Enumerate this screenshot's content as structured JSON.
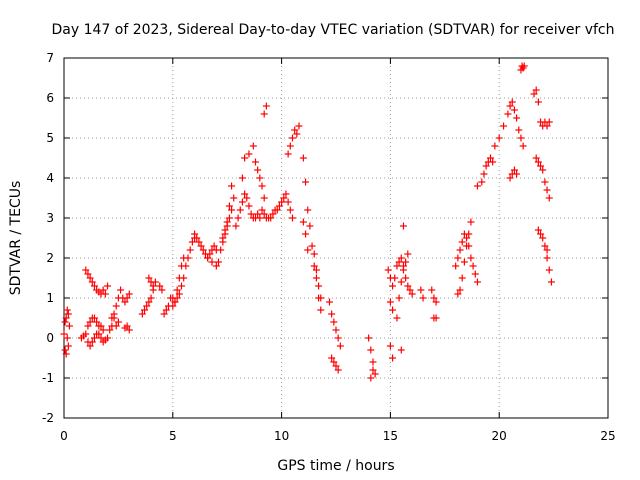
{
  "chart_data": {
    "type": "scatter",
    "title": "Day 147 of 2023, Sidereal Day-to-day VTEC variation (SDTVAR) for receiver vfch",
    "xlabel": "GPS time / hours",
    "ylabel": "SDTVAR / TECUs",
    "xlim": [
      0,
      25
    ],
    "ylim": [
      -2,
      7
    ],
    "xticks": [
      0,
      5,
      10,
      15,
      20,
      25
    ],
    "yticks": [
      -2,
      -1,
      0,
      1,
      2,
      3,
      4,
      5,
      6,
      7
    ],
    "grid": true,
    "marker": "+",
    "color": "#ff0000",
    "series": [
      {
        "name": "SDTVAR",
        "x": [
          0.0,
          0.05,
          0.1,
          0.15,
          0.2,
          0.25,
          0.1,
          0.2,
          0.15,
          0.05,
          0.8,
          0.9,
          1.0,
          1.1,
          1.2,
          1.3,
          1.4,
          1.5,
          1.6,
          1.7,
          1.8,
          1.9,
          2.0,
          2.1,
          2.2,
          2.3,
          2.4,
          2.5,
          1.1,
          1.2,
          1.3,
          1.4,
          1.5,
          1.6,
          1.7,
          1.8,
          1.0,
          1.1,
          1.2,
          1.3,
          1.4,
          1.5,
          1.6,
          1.7,
          1.8,
          1.9,
          2.0,
          2.2,
          2.3,
          2.4,
          2.5,
          2.6,
          2.7,
          2.8,
          2.9,
          3.0,
          2.9,
          3.0,
          2.8,
          3.6,
          3.7,
          3.8,
          3.9,
          4.0,
          4.1,
          4.2,
          3.9,
          4.0,
          4.1,
          4.4,
          4.5,
          4.6,
          4.7,
          4.8,
          4.9,
          5.0,
          5.1,
          5.2,
          5.3,
          5.4,
          5.5,
          5.6,
          5.7,
          5.8,
          5.9,
          6.0,
          5.0,
          5.1,
          5.2,
          5.3,
          5.4,
          5.5,
          6.0,
          6.1,
          6.2,
          6.3,
          6.4,
          6.5,
          6.6,
          6.7,
          6.8,
          6.9,
          7.0,
          6.6,
          6.8,
          7.0,
          7.1,
          7.2,
          7.3,
          7.4,
          7.5,
          7.6,
          7.7,
          7.8,
          7.3,
          7.4,
          7.5,
          7.6,
          7.7,
          7.9,
          8.0,
          8.1,
          8.2,
          8.3,
          8.4,
          8.5,
          8.6,
          8.7,
          8.8,
          8.9,
          9.0,
          9.1,
          9.2,
          9.3,
          9.4,
          8.2,
          8.3,
          8.5,
          8.7,
          8.8,
          8.9,
          9.0,
          9.1,
          9.2,
          9.5,
          9.6,
          9.7,
          9.8,
          9.9,
          10.0,
          10.1,
          10.2,
          10.3,
          10.4,
          10.5,
          10.3,
          10.4,
          10.5,
          10.6,
          10.7,
          10.8,
          9.2,
          9.3,
          11.0,
          11.1,
          11.2,
          11.3,
          11.4,
          11.5,
          11.6,
          11.7,
          11.8,
          11.0,
          11.1,
          11.2,
          11.5,
          11.6,
          11.7,
          11.8,
          12.2,
          12.3,
          12.4,
          12.5,
          12.6,
          12.7,
          12.3,
          12.4,
          12.5,
          12.6,
          14.0,
          14.1,
          14.2,
          14.3,
          14.1,
          14.2,
          14.9,
          15.0,
          15.1,
          15.2,
          15.3,
          15.4,
          15.5,
          15.6,
          15.7,
          15.8,
          15.9,
          16.0,
          15.0,
          15.1,
          15.3,
          15.4,
          15.5,
          15.6,
          15.7,
          15.8,
          15.0,
          15.1,
          15.5,
          15.6,
          16.4,
          16.5,
          16.9,
          17.0,
          17.1,
          17.1,
          17.0,
          18.1,
          18.2,
          18.3,
          18.4,
          18.5,
          18.6,
          18.7,
          18.0,
          18.1,
          18.2,
          18.3,
          18.4,
          18.5,
          18.6,
          18.7,
          18.8,
          18.9,
          19.0,
          19.0,
          19.2,
          19.3,
          19.4,
          19.5,
          19.6,
          19.7,
          19.8,
          20.0,
          20.2,
          20.4,
          20.5,
          20.6,
          20.7,
          20.8,
          20.9,
          21.0,
          21.1,
          20.5,
          20.6,
          20.7,
          20.8,
          21.0,
          21.05,
          21.1,
          21.15,
          21.6,
          21.7,
          21.8,
          21.9,
          22.0,
          22.1,
          22.2,
          22.3,
          21.7,
          21.8,
          21.9,
          22.0,
          22.1,
          22.2,
          22.3,
          21.8,
          21.9,
          22.0,
          22.1,
          22.2,
          22.2,
          22.3,
          22.4
        ],
        "y": [
          0.1,
          -0.3,
          0.5,
          0.7,
          -0.2,
          0.3,
          -0.4,
          0.6,
          0.0,
          0.4,
          0.0,
          0.05,
          0.1,
          -0.1,
          -0.2,
          -0.1,
          0.0,
          0.1,
          0.1,
          0.0,
          -0.1,
          -0.05,
          0.0,
          0.2,
          0.3,
          0.5,
          0.3,
          0.4,
          0.3,
          0.4,
          0.5,
          0.5,
          0.4,
          0.3,
          0.3,
          0.2,
          1.7,
          1.6,
          1.5,
          1.4,
          1.3,
          1.2,
          1.15,
          1.1,
          1.2,
          1.1,
          1.3,
          0.5,
          0.6,
          0.8,
          1.0,
          1.2,
          1.0,
          0.9,
          1.0,
          1.1,
          0.3,
          0.2,
          0.25,
          0.6,
          0.7,
          0.8,
          0.9,
          1.0,
          1.2,
          1.4,
          1.5,
          1.4,
          1.3,
          1.3,
          1.2,
          0.6,
          0.7,
          0.8,
          1.0,
          1.0,
          0.9,
          1.0,
          1.1,
          1.3,
          1.5,
          1.8,
          2.0,
          2.2,
          2.4,
          2.5,
          0.8,
          0.9,
          1.2,
          1.5,
          1.8,
          2.0,
          2.6,
          2.5,
          2.4,
          2.3,
          2.2,
          2.1,
          2.0,
          2.1,
          2.2,
          2.3,
          2.2,
          2.0,
          1.9,
          1.8,
          1.9,
          2.2,
          2.4,
          2.6,
          2.8,
          3.0,
          3.2,
          3.5,
          2.5,
          2.7,
          2.9,
          3.3,
          3.8,
          2.8,
          3.0,
          3.2,
          3.4,
          3.6,
          3.5,
          3.3,
          3.1,
          3.0,
          3.0,
          3.1,
          3.0,
          3.2,
          3.1,
          3.0,
          3.0,
          4.0,
          4.5,
          4.6,
          4.8,
          4.4,
          4.2,
          4.0,
          3.8,
          3.5,
          3.0,
          3.1,
          3.2,
          3.2,
          3.3,
          3.4,
          3.5,
          3.6,
          3.4,
          3.2,
          3.0,
          4.6,
          4.8,
          5.0,
          5.2,
          5.1,
          5.3,
          5.6,
          5.8,
          4.5,
          3.9,
          3.2,
          2.8,
          2.3,
          1.8,
          1.5,
          1.0,
          0.7,
          2.9,
          2.6,
          2.2,
          2.1,
          1.7,
          1.3,
          1.0,
          0.9,
          0.6,
          0.4,
          0.2,
          0.0,
          -0.2,
          -0.5,
          -0.6,
          -0.7,
          -0.8,
          0.0,
          -0.3,
          -0.6,
          -0.9,
          -1.0,
          -0.8,
          1.7,
          1.5,
          1.3,
          1.5,
          1.8,
          1.9,
          2.0,
          1.8,
          1.5,
          1.3,
          1.2,
          1.1,
          0.9,
          0.7,
          0.5,
          1.0,
          1.4,
          1.7,
          1.9,
          2.1,
          -0.2,
          -0.5,
          -0.3,
          2.8,
          1.2,
          1.0,
          1.2,
          0.5,
          0.9,
          0.5,
          1.0,
          1.1,
          1.2,
          1.5,
          1.9,
          2.3,
          2.6,
          2.9,
          1.8,
          2.0,
          2.2,
          2.4,
          2.6,
          2.5,
          2.3,
          2.0,
          1.8,
          1.6,
          1.4,
          3.8,
          3.9,
          4.1,
          4.3,
          4.4,
          4.5,
          4.4,
          4.8,
          5.0,
          5.3,
          5.6,
          5.8,
          5.9,
          5.7,
          5.5,
          5.2,
          5.0,
          4.8,
          4.0,
          4.1,
          4.2,
          4.1,
          6.7,
          6.8,
          6.75,
          6.8,
          6.1,
          6.2,
          5.9,
          5.4,
          5.3,
          5.4,
          5.3,
          5.4,
          4.5,
          4.4,
          4.3,
          4.2,
          3.9,
          3.7,
          3.5,
          2.7,
          2.6,
          2.5,
          2.3,
          2.2,
          2.0,
          1.7,
          1.4
        ]
      }
    ]
  }
}
